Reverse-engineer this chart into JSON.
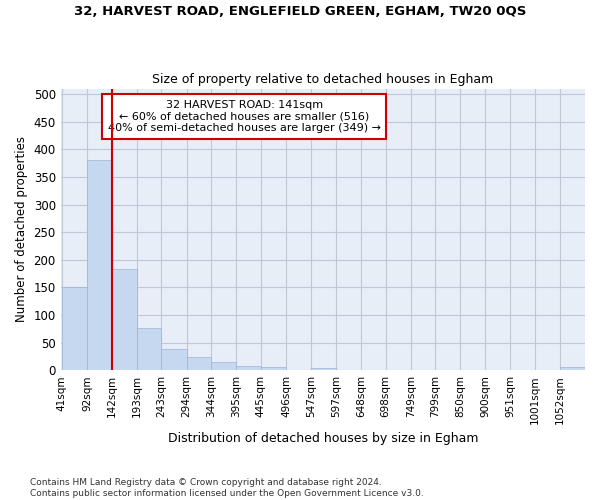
{
  "title_line1": "32, HARVEST ROAD, ENGLEFIELD GREEN, EGHAM, TW20 0QS",
  "title_line2": "Size of property relative to detached houses in Egham",
  "xlabel": "Distribution of detached houses by size in Egham",
  "ylabel": "Number of detached properties",
  "bin_edges": [
    41,
    92,
    142,
    193,
    243,
    294,
    344,
    395,
    445,
    496,
    547,
    597,
    648,
    698,
    749,
    799,
    850,
    900,
    951,
    1001,
    1052
  ],
  "bin_labels": [
    "41sqm",
    "92sqm",
    "142sqm",
    "193sqm",
    "243sqm",
    "294sqm",
    "344sqm",
    "395sqm",
    "445sqm",
    "496sqm",
    "547sqm",
    "597sqm",
    "648sqm",
    "698sqm",
    "749sqm",
    "799sqm",
    "850sqm",
    "900sqm",
    "951sqm",
    "1001sqm",
    "1052sqm"
  ],
  "bin_values": [
    150,
    380,
    183,
    77,
    38,
    24,
    14,
    7,
    5,
    0,
    4,
    0,
    0,
    0,
    0,
    0,
    0,
    0,
    0,
    0,
    5
  ],
  "bar_color": "#c5d8f0",
  "bar_edge_color": "#9ab5d5",
  "vline_x": 142,
  "vline_color": "#cc0000",
  "annotation_text": "32 HARVEST ROAD: 141sqm\n← 60% of detached houses are smaller (516)\n40% of semi-detached houses are larger (349) →",
  "annotation_box_color": "white",
  "annotation_box_edge_color": "#cc0000",
  "ylim": [
    0,
    510
  ],
  "yticks": [
    0,
    50,
    100,
    150,
    200,
    250,
    300,
    350,
    400,
    450,
    500
  ],
  "grid_color": "#c0c8d8",
  "footer_text": "Contains HM Land Registry data © Crown copyright and database right 2024.\nContains public sector information licensed under the Open Government Licence v3.0.",
  "background_color": "#e8eef8"
}
